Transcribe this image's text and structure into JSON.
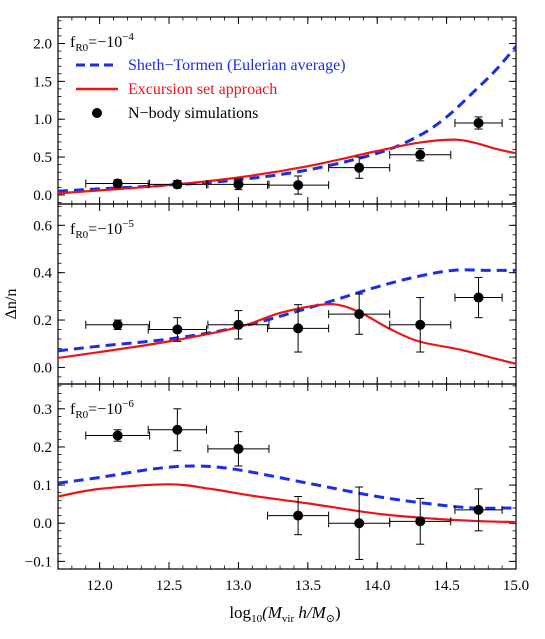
{
  "figure": {
    "xlabel_prefix": "log",
    "xlabel_sub": "10",
    "xlabel_body": "(M",
    "xlabel_vir": "vir",
    "xlabel_h": " h/M",
    "xlabel_sun": "⊙",
    "xlabel_close": ")",
    "ylabel": "Δn/n"
  },
  "legend": {
    "st": "Sheth−Tormen (Eulerian average)",
    "es": "Excursion set approach",
    "nb": "N−body simulations"
  },
  "colors": {
    "st": "#1a2ee6",
    "es": "#e8151b",
    "nb": "#000000",
    "axis": "#000000"
  },
  "chart_data": [
    {
      "type": "line",
      "panel_label": {
        "base": "f",
        "sub": "R0",
        "text": "=−10",
        "exp": "−4"
      },
      "xlim": [
        11.7,
        15.0
      ],
      "ylim": [
        -0.12,
        2.35
      ],
      "yticks": [
        0.0,
        0.5,
        1.0,
        1.5,
        2.0
      ],
      "ytick_labels": [
        "0.0",
        "0.5",
        "1.0",
        "1.5",
        "2.0"
      ],
      "series": [
        {
          "name": "Sheth−Tormen (Eulerian average)",
          "style": "dashed",
          "x": [
            11.7,
            12.0,
            12.5,
            13.0,
            13.5,
            14.0,
            14.3,
            14.5,
            14.7,
            14.85,
            15.0
          ],
          "y": [
            0.05,
            0.08,
            0.13,
            0.2,
            0.33,
            0.55,
            0.78,
            1.03,
            1.37,
            1.64,
            1.96
          ]
        },
        {
          "name": "Excursion set approach",
          "style": "solid",
          "x": [
            11.7,
            12.0,
            12.5,
            13.0,
            13.5,
            14.0,
            14.3,
            14.55,
            14.7,
            14.85,
            15.0
          ],
          "y": [
            0.02,
            0.06,
            0.13,
            0.23,
            0.38,
            0.58,
            0.69,
            0.73,
            0.69,
            0.61,
            0.55
          ]
        },
        {
          "name": "N−body simulations",
          "style": "points",
          "x": [
            12.13,
            12.56,
            13.0,
            13.43,
            13.87,
            14.31,
            14.73
          ],
          "y": [
            0.15,
            0.14,
            0.14,
            0.13,
            0.36,
            0.53,
            0.95
          ],
          "xerr": [
            0.23,
            0.21,
            0.22,
            0.22,
            0.22,
            0.22,
            0.17
          ],
          "yerr": [
            0.05,
            0.05,
            0.07,
            0.12,
            0.14,
            0.08,
            0.08
          ]
        }
      ]
    },
    {
      "type": "line",
      "panel_label": {
        "base": "f",
        "sub": "R0",
        "text": "=−10",
        "exp": "−5"
      },
      "xlim": [
        11.7,
        15.0
      ],
      "ylim": [
        -0.07,
        0.69
      ],
      "yticks": [
        0.0,
        0.2,
        0.4,
        0.6
      ],
      "ytick_labels": [
        "0.0",
        "0.2",
        "0.4",
        "0.6"
      ],
      "series": [
        {
          "name": "Sheth−Tormen (Eulerian average)",
          "style": "dashed",
          "x": [
            11.7,
            12.0,
            12.5,
            13.0,
            13.5,
            14.0,
            14.3,
            14.55,
            14.8,
            15.0
          ],
          "y": [
            0.07,
            0.09,
            0.12,
            0.17,
            0.25,
            0.34,
            0.385,
            0.41,
            0.41,
            0.41
          ]
        },
        {
          "name": "Excursion set approach",
          "style": "solid",
          "x": [
            11.7,
            12.0,
            12.5,
            13.0,
            13.3,
            13.6,
            13.75,
            13.9,
            14.1,
            14.3,
            14.6,
            14.8,
            15.0
          ],
          "y": [
            0.04,
            0.065,
            0.11,
            0.17,
            0.23,
            0.265,
            0.26,
            0.225,
            0.16,
            0.11,
            0.075,
            0.045,
            0.015
          ]
        },
        {
          "name": "N−body simulations",
          "style": "points",
          "x": [
            12.13,
            12.56,
            13.0,
            13.43,
            13.87,
            14.31,
            14.73
          ],
          "y": [
            0.18,
            0.16,
            0.18,
            0.165,
            0.225,
            0.18,
            0.295
          ],
          "xerr": [
            0.23,
            0.21,
            0.22,
            0.22,
            0.22,
            0.22,
            0.17
          ],
          "yerr": [
            0.02,
            0.05,
            0.06,
            0.1,
            0.085,
            0.115,
            0.085
          ]
        }
      ]
    },
    {
      "type": "line",
      "panel_label": {
        "base": "f",
        "sub": "R0",
        "text": "=−10",
        "exp": "−6"
      },
      "xlim": [
        11.7,
        15.0
      ],
      "ylim": [
        -0.12,
        0.365
      ],
      "yticks": [
        -0.1,
        0.0,
        0.1,
        0.2,
        0.3
      ],
      "ytick_labels": [
        "−0.1",
        "0.0",
        "0.1",
        "0.2",
        "0.3"
      ],
      "series": [
        {
          "name": "Sheth−Tormen (Eulerian average)",
          "style": "dashed",
          "x": [
            11.7,
            12.0,
            12.4,
            12.7,
            13.0,
            13.5,
            14.0,
            14.4,
            14.7,
            15.0
          ],
          "y": [
            0.105,
            0.12,
            0.143,
            0.15,
            0.14,
            0.105,
            0.07,
            0.05,
            0.04,
            0.04
          ]
        },
        {
          "name": "Excursion set approach",
          "style": "solid",
          "x": [
            11.7,
            12.0,
            12.5,
            12.8,
            13.1,
            13.5,
            14.0,
            14.4,
            14.7,
            15.0
          ],
          "y": [
            0.07,
            0.09,
            0.102,
            0.09,
            0.072,
            0.052,
            0.025,
            0.012,
            0.006,
            0.003
          ]
        },
        {
          "name": "N−body simulations",
          "style": "points",
          "x": [
            12.13,
            12.56,
            13.0,
            13.43,
            13.87,
            14.31,
            14.73
          ],
          "y": [
            0.23,
            0.245,
            0.195,
            0.02,
            0.0,
            0.005,
            0.035
          ],
          "xerr": [
            0.23,
            0.21,
            0.22,
            0.22,
            0.22,
            0.22,
            0.17
          ],
          "yerr": [
            0.015,
            0.055,
            0.045,
            0.05,
            0.095,
            0.06,
            0.055
          ]
        }
      ]
    }
  ],
  "xticks": [
    12.0,
    12.5,
    13.0,
    13.5,
    14.0,
    14.5,
    15.0
  ],
  "xtick_labels": [
    "12.0",
    "12.5",
    "13.0",
    "13.5",
    "14.0",
    "14.5",
    "15.0"
  ]
}
